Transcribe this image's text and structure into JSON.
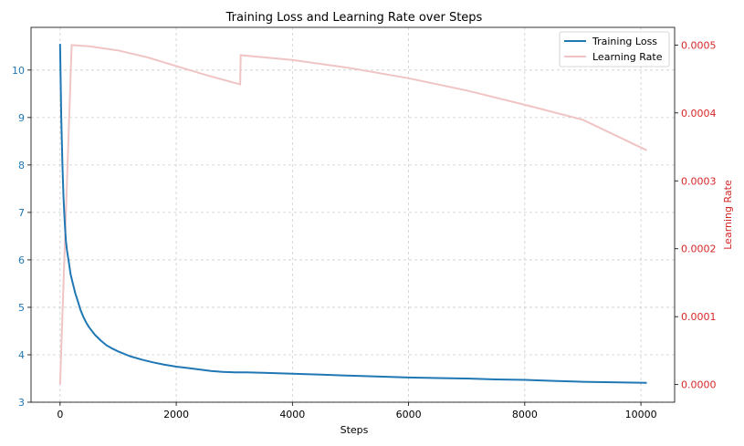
{
  "chart_data": {
    "type": "line",
    "title": "Training Loss and Learning Rate over Steps",
    "xlabel": "Steps",
    "ylabel_right": "Learning Rate",
    "xlim": [
      -500,
      10580
    ],
    "ylim_left": [
      3.0,
      10.9
    ],
    "ylim_right": [
      -2.6e-05,
      0.000526
    ],
    "x_ticks": [
      0,
      2000,
      4000,
      6000,
      8000,
      10000
    ],
    "x_tick_labels": [
      "0",
      "2000",
      "4000",
      "6000",
      "8000",
      "10000"
    ],
    "y_left_ticks": [
      3,
      4,
      5,
      6,
      7,
      8,
      9,
      10
    ],
    "y_left_tick_labels": [
      "3",
      "4",
      "5",
      "6",
      "7",
      "8",
      "9",
      "10"
    ],
    "y_right_ticks": [
      0.0,
      0.0001,
      0.0002,
      0.0003,
      0.0004,
      0.0005
    ],
    "y_right_tick_labels": [
      "0.0000",
      "0.0001",
      "0.0002",
      "0.0003",
      "0.0004",
      "0.0005"
    ],
    "grid": true,
    "legend_placement": "top-right",
    "colors": {
      "loss": "#1f77b4",
      "learning_rate": "#f0c4c4",
      "right_axis": "#d62728",
      "left_axis": "#1f77b4"
    },
    "series": [
      {
        "name": "Training Loss",
        "axis": "left",
        "x": [
          0,
          20,
          40,
          60,
          80,
          100,
          120,
          150,
          180,
          220,
          260,
          300,
          350,
          400,
          450,
          500,
          600,
          700,
          800,
          900,
          1000,
          1200,
          1400,
          1600,
          1800,
          2000,
          2200,
          2400,
          2600,
          2800,
          3000,
          3200,
          3500,
          4000,
          4500,
          5000,
          5500,
          6000,
          6500,
          7000,
          7500,
          8000,
          8500,
          9000,
          9500,
          10100
        ],
        "y": [
          10.55,
          9.0,
          8.0,
          7.3,
          6.8,
          6.4,
          6.2,
          5.95,
          5.7,
          5.5,
          5.3,
          5.15,
          4.95,
          4.8,
          4.68,
          4.58,
          4.42,
          4.3,
          4.2,
          4.13,
          4.07,
          3.97,
          3.9,
          3.84,
          3.79,
          3.75,
          3.72,
          3.69,
          3.66,
          3.64,
          3.63,
          3.63,
          3.62,
          3.6,
          3.58,
          3.56,
          3.54,
          3.52,
          3.51,
          3.5,
          3.48,
          3.47,
          3.45,
          3.43,
          3.42,
          3.41
        ]
      },
      {
        "name": "Learning Rate",
        "axis": "right",
        "x": [
          0,
          200,
          500,
          1000,
          1500,
          2000,
          2500,
          3100,
          3110,
          4000,
          5000,
          6000,
          7000,
          8000,
          9000,
          10100
        ],
        "y": [
          0.0,
          0.0005,
          0.000498,
          0.000492,
          0.000482,
          0.000469,
          0.000456,
          0.000442,
          0.000485,
          0.000478,
          0.000466,
          0.000451,
          0.000433,
          0.000412,
          0.00039,
          0.000345
        ]
      }
    ]
  }
}
